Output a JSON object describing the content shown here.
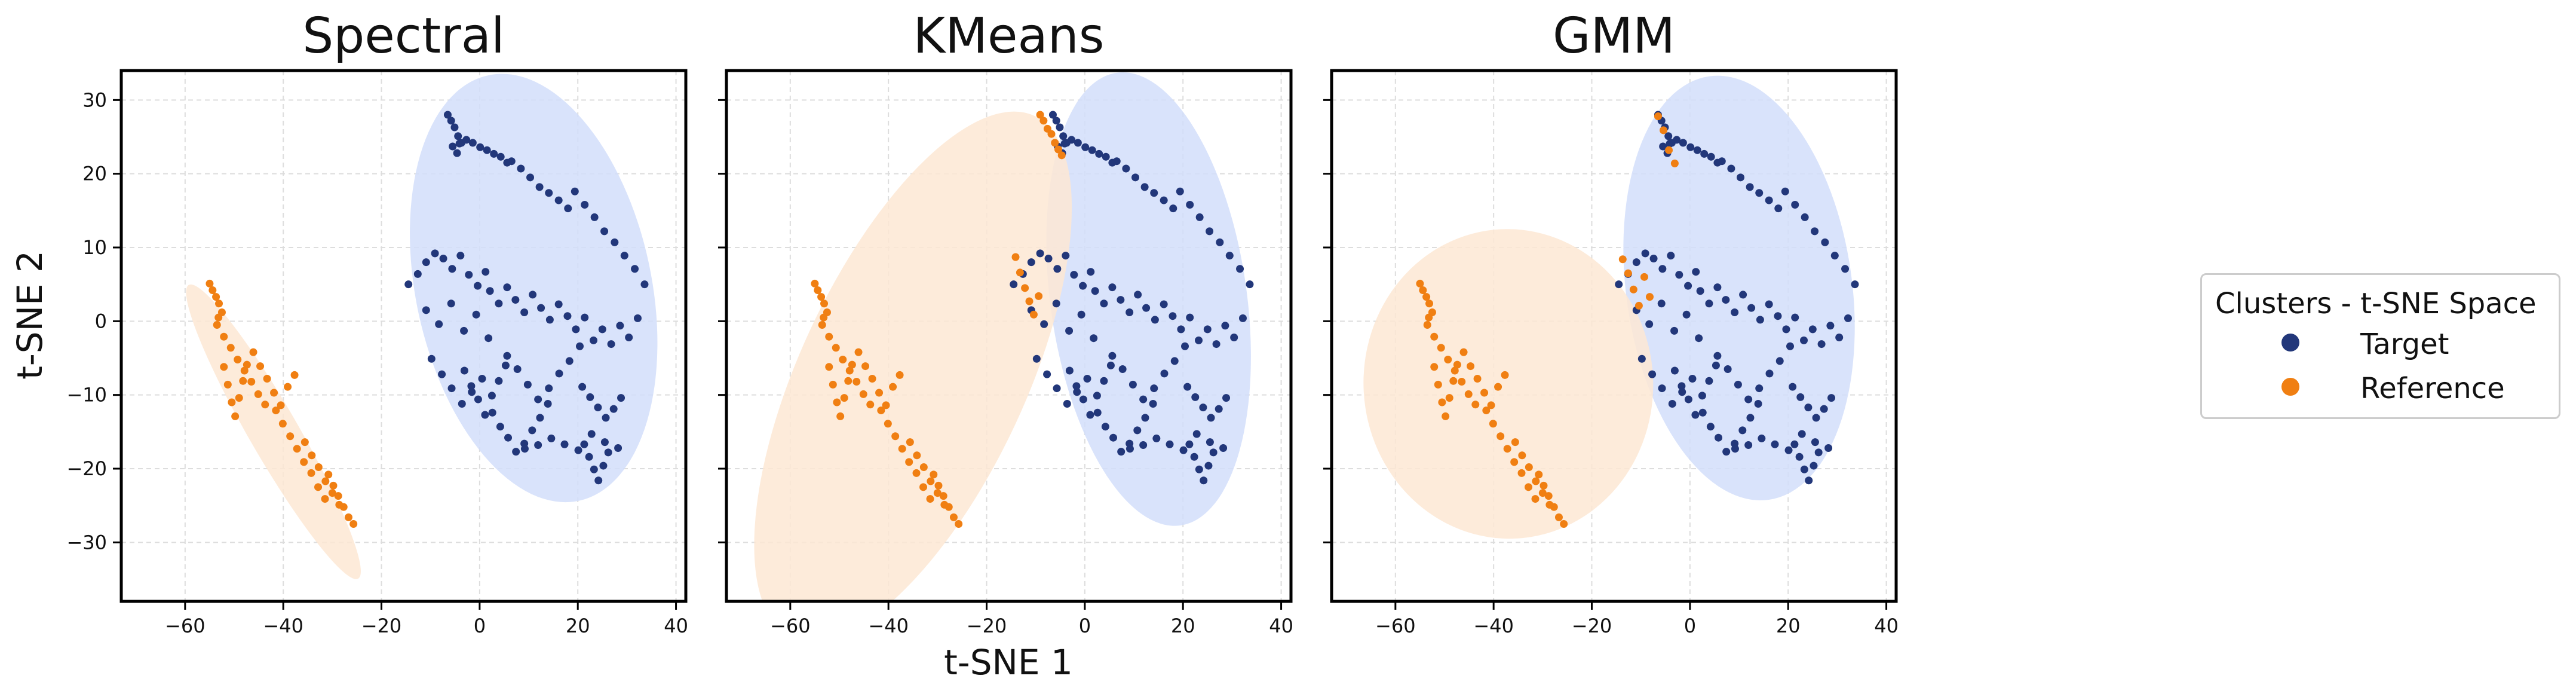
{
  "chart_data": {
    "type": "scatter",
    "xlabel": "t-SNE 1",
    "ylabel": "t-SNE 2",
    "xlim": [
      -73,
      42
    ],
    "ylim": [
      -38,
      34
    ],
    "xticks": [
      -60,
      -40,
      -20,
      0,
      20,
      40
    ],
    "yticks": [
      30,
      20,
      10,
      0,
      -10,
      -20,
      -30
    ],
    "grid": true,
    "legend": {
      "title": "Clusters - t-SNE Space",
      "placement": "right",
      "entries": [
        {
          "label": "Target",
          "color": "#22377a"
        },
        {
          "label": "Reference",
          "color": "#f07f12"
        }
      ]
    },
    "colors": {
      "target": "#22377a",
      "reference": "#f07f12",
      "target_ellipse": "#d2defa",
      "reference_ellipse": "#fde8d4"
    },
    "panels": [
      {
        "title": "Spectral",
        "ellipses": [
          {
            "cluster": "target",
            "cx": 11,
            "cy": 4.5,
            "width": 48,
            "height": 59,
            "angle": 12
          },
          {
            "cluster": "reference",
            "cx": -42,
            "cy": -15,
            "width": 10,
            "height": 46,
            "angle": 30
          }
        ]
      },
      {
        "title": "KMeans",
        "ellipses": [
          {
            "cluster": "target",
            "cx": 13,
            "cy": 3,
            "width": 40,
            "height": 62,
            "angle": 8
          },
          {
            "cluster": "reference",
            "cx": -35,
            "cy": -7.5,
            "width": 46,
            "height": 78,
            "angle": -25
          }
        ]
      },
      {
        "title": "GMM",
        "ellipses": [
          {
            "cluster": "target",
            "cx": 10,
            "cy": 4.5,
            "width": 46,
            "height": 58,
            "angle": 8
          },
          {
            "cluster": "reference",
            "cx": -37,
            "cy": -8.5,
            "width": 59,
            "height": 42,
            "angle": 3
          }
        ]
      }
    ],
    "point_groups": {
      "target": [
        {
          "x": [
            -6.5,
            -5.8,
            -5.1,
            -4.4,
            -3.7,
            -4.6,
            -5.5
          ],
          "y": [
            28,
            27.2,
            26.3,
            25.1,
            24.2,
            22.8,
            23.7
          ]
        },
        {
          "x": [
            -4.1,
            -2.7,
            -1.4,
            0.1,
            1.5,
            2.9,
            4.3,
            5.6
          ],
          "y": [
            24.1,
            24.6,
            24.2,
            23.6,
            23.2,
            22.7,
            22.3,
            21.5
          ]
        },
        {
          "x": [
            6.5,
            8.4,
            10.3,
            12.2,
            14.1,
            16.1,
            18
          ],
          "y": [
            21.7,
            20.7,
            19.5,
            18.2,
            17.4,
            16.4,
            15.3
          ]
        },
        {
          "x": [
            19.4,
            21.4,
            23.4,
            25.4,
            27.5,
            29.5,
            31.6,
            33.6
          ],
          "y": [
            17.6,
            15.8,
            14.1,
            12.2,
            10.7,
            8.9,
            7.1,
            5
          ]
        },
        {
          "x": [
            -14.5,
            -12.6,
            -10.9,
            -9.1,
            -7.4,
            -5.6,
            -3.9,
            -2.2,
            -0.4,
            1.2
          ],
          "y": [
            5,
            6.4,
            8,
            9.2,
            8.5,
            7.1,
            8.9,
            6.3,
            4.8,
            6.7
          ]
        },
        {
          "x": [
            2.1,
            3.9,
            5.6,
            7.3,
            9.1,
            10.8,
            12.5,
            14.3
          ],
          "y": [
            4.1,
            2.4,
            4.6,
            2.9,
            1.2,
            3.6,
            1.8,
            0.2
          ]
        },
        {
          "x": [
            16.1,
            17.9,
            19.6,
            21.4,
            23.2,
            25,
            26.8,
            28.6,
            30.4,
            32.2
          ],
          "y": [
            2.3,
            0.7,
            -1.1,
            0.5,
            -2.6,
            -1.1,
            -3.1,
            -0.6,
            -2.2,
            0.4
          ]
        },
        {
          "x": [
            -10.9,
            -8.3,
            -5.8,
            -3.2,
            -0.7,
            1.8
          ],
          "y": [
            1.5,
            -0.4,
            2.4,
            -1.3,
            0.9,
            -2.3
          ]
        },
        {
          "x": [
            -3.1,
            -1.7,
            -0.3,
            1.1,
            2.5,
            3.9,
            5.3
          ],
          "y": [
            -6.7,
            -8.8,
            -10.6,
            -12.7,
            -10.1,
            -8.1,
            -6
          ]
        },
        {
          "x": [
            5.6,
            7.7,
            9.8,
            11.9,
            14.1,
            16.2,
            18.3,
            20.4
          ],
          "y": [
            -4.7,
            -6.5,
            -8.6,
            -10.6,
            -9.1,
            -7.1,
            -5.4,
            -3.4
          ]
        },
        {
          "x": [
            2.6,
            4.2,
            5.8,
            7.4,
            9.1,
            10.7,
            12.3,
            13.9
          ],
          "y": [
            -12.4,
            -14.3,
            -15.8,
            -17.7,
            -16.6,
            -14.8,
            -13.1,
            -11.2
          ]
        },
        {
          "x": [
            9.2,
            11.9,
            14.6,
            17.3,
            20.1,
            22.8,
            25.5,
            28.2
          ],
          "y": [
            -17.3,
            -16.8,
            -15.9,
            -16.7,
            -17.5,
            -15.3,
            -16.4,
            -17.2
          ]
        },
        {
          "x": [
            21.3,
            22.3,
            23.3,
            24.2,
            25.2,
            26.2
          ],
          "y": [
            -16.7,
            -18.4,
            -20.1,
            -21.6,
            -19.6,
            -17.8
          ]
        },
        {
          "x": [
            20.9,
            22.5,
            24.1,
            25.7,
            27.3,
            28.8
          ],
          "y": [
            -8.9,
            -10.3,
            -11.7,
            -13.1,
            -11.9,
            -10.4
          ]
        },
        {
          "x": [
            -9.8,
            -7.7,
            -5.7,
            -3.6,
            -1.6,
            0.5
          ],
          "y": [
            -5.1,
            -7.2,
            -9.1,
            -11.2,
            -9.6,
            -7.8
          ]
        }
      ],
      "reference": [
        {
          "x": [
            -55,
            -54.4,
            -53.7,
            -53.1,
            -52.5,
            -53.2
          ],
          "y": [
            5.1,
            4.2,
            3.3,
            2.4,
            1.2,
            0.5
          ]
        },
        {
          "x": [
            -53.5,
            -52.1,
            -50.7,
            -49.3,
            -47.9,
            -46.5,
            -45.1,
            -43.7
          ],
          "y": [
            -0.5,
            -2.1,
            -3.6,
            -5.2,
            -6.7,
            -8.2,
            -9.9,
            -11.3
          ]
        },
        {
          "x": [
            -52.1,
            -51.3,
            -50.5,
            -49.8,
            -49,
            -48.2,
            -47.4
          ],
          "y": [
            -6.2,
            -8.6,
            -11,
            -12.9,
            -10.4,
            -8.1,
            -5.9
          ]
        },
        {
          "x": [
            -46.1,
            -44.7,
            -43.3,
            -41.9,
            -40.5,
            -39.1,
            -37.7
          ],
          "y": [
            -4.2,
            -6.1,
            -7.8,
            -9.7,
            -11.4,
            -8.9,
            -7.3
          ]
        },
        {
          "x": [
            -41.5,
            -40.1,
            -38.6,
            -37.2,
            -35.8,
            -34.3,
            -32.9,
            -31.5
          ],
          "y": [
            -12.1,
            -13.9,
            -15.6,
            -17.3,
            -19.1,
            -20.6,
            -22.5,
            -24.1
          ]
        },
        {
          "x": [
            -30.8,
            -29.8,
            -28.8,
            -27.7,
            -26.7,
            -25.7
          ],
          "y": [
            -20.8,
            -22.3,
            -23.7,
            -25.2,
            -26.6,
            -27.5
          ]
        },
        {
          "x": [
            -35.6,
            -34.2,
            -32.8,
            -31.4,
            -30,
            -28.6
          ],
          "y": [
            -16.4,
            -18.2,
            -19.8,
            -21.7,
            -23.3,
            -24.9
          ]
        }
      ]
    },
    "kmeans_reference_extra": [
      {
        "x": [
          -9.1,
          -8.4,
          -7.6,
          -6.8,
          -6.1,
          -5.4,
          -4.7
        ],
        "y": [
          28,
          27.2,
          26.1,
          25.4,
          24.2,
          23.3,
          22.5
        ]
      },
      {
        "x": [
          -14.1,
          -13.2,
          -12.2,
          -11.3,
          -10.4,
          -9.4
        ],
        "y": [
          8.7,
          6.6,
          4.5,
          2.7,
          0.9,
          3.4
        ]
      }
    ],
    "gmm_reference_extra": [
      {
        "x": [
          -13.7,
          -12.6,
          -11.5,
          -10.4,
          -9.3,
          -8.2
        ],
        "y": [
          8.4,
          6.5,
          4.3,
          2.1,
          6,
          3.3
        ]
      },
      {
        "x": [
          -6.5,
          -5.4,
          -4.3,
          -3.1
        ],
        "y": [
          27.8,
          25.9,
          23.2,
          21.4
        ]
      }
    ]
  }
}
